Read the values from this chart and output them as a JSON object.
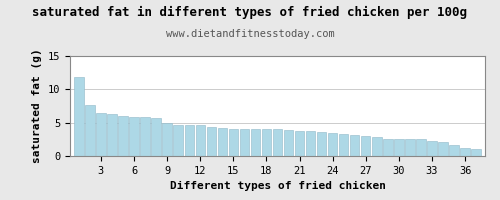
{
  "title": "saturated fat in different types of fried chicken per 100g",
  "subtitle": "www.dietandfitnesstoday.com",
  "xlabel": "Different types of fried chicken",
  "ylabel": "saturated fat (g)",
  "bar_color": "#add8e6",
  "bar_edge_color": "#90b8c8",
  "background_color": "#e8e8e8",
  "plot_bg_color": "#ffffff",
  "ylim": [
    0,
    15
  ],
  "yticks": [
    0,
    5,
    10,
    15
  ],
  "xticks": [
    3,
    6,
    9,
    12,
    15,
    18,
    21,
    24,
    27,
    30,
    33,
    36
  ],
  "values": [
    11.8,
    7.6,
    6.4,
    6.3,
    6.0,
    5.8,
    5.8,
    5.7,
    5.0,
    4.7,
    4.7,
    4.6,
    4.4,
    4.2,
    4.1,
    4.1,
    4.0,
    4.0,
    4.0,
    3.9,
    3.8,
    3.7,
    3.6,
    3.5,
    3.3,
    3.1,
    3.0,
    2.9,
    2.6,
    2.5,
    2.5,
    2.5,
    2.2,
    2.1,
    1.6,
    1.2,
    1.1
  ],
  "title_fontsize": 9,
  "subtitle_fontsize": 7.5,
  "axis_label_fontsize": 8,
  "tick_fontsize": 7.5,
  "border_color": "#888888",
  "grid_color": "#cccccc",
  "title_color": "#000000",
  "subtitle_color": "#555555"
}
